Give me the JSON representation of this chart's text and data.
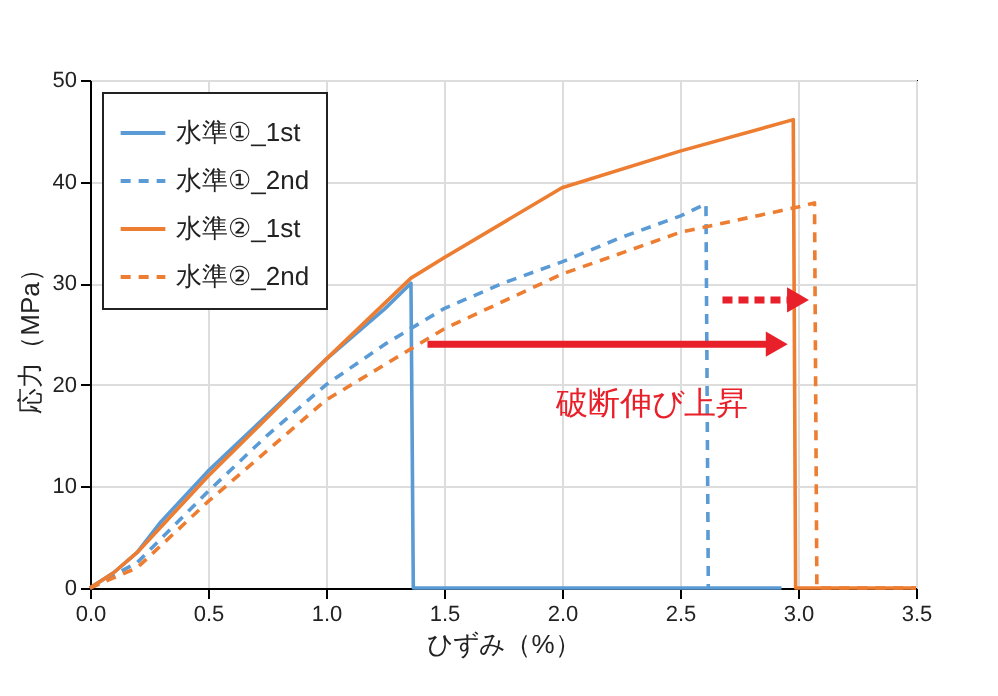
{
  "chart_data": {
    "type": "line",
    "xlabel": "ひずみ（%）",
    "ylabel": "応力（MPa）",
    "series": [
      {
        "name": "水準①_1st",
        "color": "#5b9bd5",
        "line_style": "solid",
        "x": [
          0,
          0.1,
          0.2,
          0.3,
          0.5,
          0.75,
          1.0,
          1.25,
          1.36,
          1.37,
          2.93
        ],
        "values": [
          0,
          1.5,
          3.5,
          6.5,
          11.5,
          17,
          22.5,
          27.5,
          30,
          0,
          0
        ]
      },
      {
        "name": "水準①_2nd",
        "color": "#5b9bd5",
        "line_style": "dashed",
        "x": [
          0,
          0.2,
          0.5,
          0.75,
          1.0,
          1.25,
          1.5,
          1.75,
          2.0,
          2.25,
          2.5,
          2.61,
          2.62
        ],
        "values": [
          0,
          2.5,
          9.5,
          15,
          20,
          24,
          27.5,
          30,
          32.1,
          34.5,
          36.6,
          37.8,
          0
        ]
      },
      {
        "name": "水準②_1st",
        "color": "#ed7d31",
        "line_style": "solid",
        "x": [
          0,
          0.1,
          0.2,
          0.5,
          1.0,
          1.36,
          1.5,
          2.0,
          2.5,
          2.98,
          2.99,
          3.5
        ],
        "values": [
          0,
          1.5,
          3.5,
          11,
          22.5,
          30.5,
          32.5,
          39.4,
          43,
          46.1,
          0,
          0
        ]
      },
      {
        "name": "水準②_2nd",
        "color": "#ed7d31",
        "line_style": "dashed",
        "x": [
          0,
          0.2,
          0.5,
          1.0,
          1.5,
          2.0,
          2.5,
          3.0,
          3.07,
          3.08,
          3.5
        ],
        "values": [
          0,
          2,
          8.5,
          18.5,
          25.5,
          30.9,
          35,
          37.5,
          37.9,
          0,
          0
        ]
      }
    ],
    "xlim": [
      0,
      3.5
    ],
    "xticks": [
      {
        "value": 0,
        "label": "0.0"
      },
      0.5,
      {
        "value": 1,
        "label": "1.0"
      },
      1.5,
      {
        "value": 2,
        "label": "2.0"
      },
      2.5,
      {
        "value": 3,
        "label": "3.0"
      },
      3.5
    ],
    "ylim": [
      0,
      50
    ],
    "yticks": [
      0,
      10,
      20,
      30,
      40,
      50
    ],
    "grid": true,
    "legend": "top left",
    "marker": "none",
    "annotations": [
      "破断伸び上昇"
    ]
  }
}
